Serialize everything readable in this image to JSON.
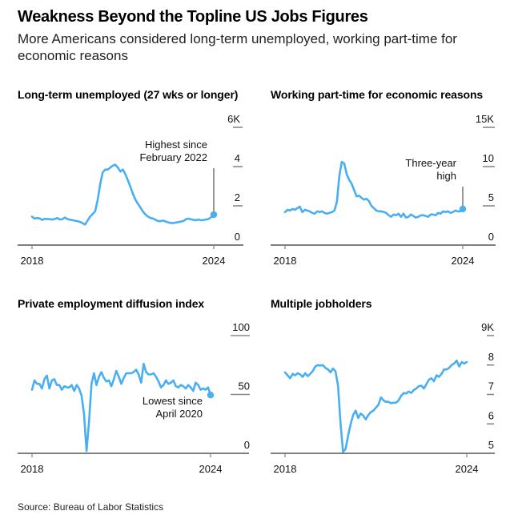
{
  "header": {
    "title": "Weakness Beyond the Topline US Jobs Figures",
    "subtitle": "More Americans considered long-term unemployed, working part-time for economic reasons"
  },
  "source": "Source: Bureau of Labor Statistics",
  "colors": {
    "line": "#4aaff0",
    "axis": "#333333",
    "tick": "#888888",
    "annotation_line": "#333333"
  },
  "chart_data": [
    {
      "type": "line",
      "title": "Long-term unemployed (27 wks or longer)",
      "xlabel": "",
      "ylabel": "",
      "x_ticks": [
        "2018",
        "2024"
      ],
      "y_ticks": [
        "0",
        "2",
        "4",
        "6K"
      ],
      "ylim": [
        0,
        6
      ],
      "xlim": [
        2018.0,
        2024.0
      ],
      "grid": false,
      "annotation": {
        "text": [
          "Highest since",
          "February 2022"
        ],
        "x": 2024.0,
        "y": 1.55
      },
      "series": [
        {
          "name": "Long-term unemployed (thousands)",
          "x_start": 2018.0,
          "step_months": 1,
          "values": [
            1.45,
            1.35,
            1.38,
            1.36,
            1.28,
            1.34,
            1.33,
            1.32,
            1.3,
            1.33,
            1.38,
            1.3,
            1.32,
            1.4,
            1.33,
            1.29,
            1.27,
            1.24,
            1.22,
            1.18,
            1.12,
            1.05,
            1.25,
            1.45,
            1.58,
            1.72,
            2.3,
            3.1,
            3.7,
            3.85,
            3.85,
            3.95,
            4.05,
            4.1,
            3.95,
            3.75,
            3.85,
            3.6,
            3.3,
            2.95,
            2.6,
            2.3,
            2.1,
            1.9,
            1.7,
            1.55,
            1.45,
            1.38,
            1.35,
            1.28,
            1.22,
            1.22,
            1.25,
            1.2,
            1.15,
            1.13,
            1.12,
            1.15,
            1.17,
            1.2,
            1.23,
            1.32,
            1.35,
            1.31,
            1.28,
            1.27,
            1.3,
            1.26,
            1.28,
            1.3,
            1.34,
            1.42,
            1.55
          ]
        }
      ]
    },
    {
      "type": "line",
      "title": "Working part-time for economic reasons",
      "xlabel": "",
      "ylabel": "",
      "x_ticks": [
        "2018",
        "2024"
      ],
      "y_ticks": [
        "0",
        "5",
        "10",
        "15K"
      ],
      "ylim": [
        0,
        15
      ],
      "xlim": [
        2018.0,
        2024.0
      ],
      "grid": false,
      "annotation": {
        "text": [
          "Three-year",
          "high"
        ],
        "x": 2024.0,
        "y": 4.6
      },
      "series": [
        {
          "name": "Part-time for economic reasons (thousands)",
          "x_start": 2018.0,
          "step_months": 1,
          "values": [
            4.2,
            4.5,
            4.4,
            4.6,
            4.5,
            4.7,
            4.9,
            4.2,
            4.5,
            4.4,
            4.3,
            4.1,
            4.0,
            4.3,
            4.2,
            4.3,
            4.1,
            4.0,
            4.1,
            4.2,
            4.4,
            5.5,
            8.8,
            10.6,
            10.4,
            9.0,
            8.3,
            7.8,
            7.0,
            6.2,
            6.3,
            6.0,
            5.8,
            5.9,
            5.6,
            5.0,
            4.7,
            4.4,
            4.3,
            4.3,
            4.2,
            4.1,
            3.8,
            3.6,
            3.9,
            3.8,
            4.0,
            3.6,
            4.0,
            3.5,
            3.6,
            3.9,
            3.7,
            3.5,
            3.6,
            3.8,
            3.8,
            3.7,
            3.6,
            3.9,
            3.9,
            3.8,
            4.1,
            4.0,
            4.3,
            4.2,
            4.3,
            4.1,
            4.2,
            4.4,
            4.3,
            4.3,
            4.6
          ]
        }
      ]
    },
    {
      "type": "line",
      "title": "Private employment diffusion index",
      "xlabel": "",
      "ylabel": "",
      "x_ticks": [
        "2018",
        "2024"
      ],
      "y_ticks": [
        "0",
        "50",
        "100"
      ],
      "ylim": [
        0,
        100
      ],
      "xlim": [
        2018.0,
        2024.0
      ],
      "grid": false,
      "annotation": {
        "text": [
          "Lowest since",
          "April 2020"
        ],
        "x": 2024.0,
        "y": 49.5
      },
      "series": [
        {
          "name": "Diffusion index",
          "x_start": 2018.0,
          "step_months": 1,
          "values": [
            54,
            62,
            59,
            59,
            55,
            63,
            66,
            55,
            62,
            63,
            58,
            58,
            54,
            57,
            56,
            56,
            58,
            53,
            58,
            55,
            49,
            33,
            2,
            27,
            59,
            68,
            58,
            65,
            69,
            64,
            61,
            62,
            57,
            63,
            70,
            65,
            59,
            64,
            68,
            68,
            68,
            69,
            71,
            67,
            60,
            76,
            69,
            67,
            67,
            68,
            65,
            61,
            56,
            58,
            62,
            59,
            60,
            62,
            57,
            56,
            58,
            57,
            55,
            58,
            56,
            53,
            60,
            58,
            54,
            55,
            54,
            56,
            49.5
          ]
        }
      ]
    },
    {
      "type": "line",
      "title": "Multiple jobholders",
      "xlabel": "",
      "ylabel": "",
      "x_ticks": [
        "2018",
        "2024"
      ],
      "y_ticks": [
        "5",
        "6",
        "7",
        "8",
        "9K"
      ],
      "ylim": [
        5,
        9
      ],
      "xlim": [
        2018.0,
        2024.0
      ],
      "grid": false,
      "series": [
        {
          "name": "Multiple jobholders (thousands)",
          "x_start": 2018.0,
          "step_months": 1,
          "values": [
            7.75,
            7.65,
            7.55,
            7.7,
            7.65,
            7.72,
            7.68,
            7.6,
            7.72,
            7.62,
            7.7,
            7.8,
            7.95,
            8.0,
            7.98,
            8.0,
            7.9,
            7.85,
            7.75,
            7.88,
            7.78,
            7.3,
            6.0,
            5.05,
            5.15,
            5.6,
            6.0,
            6.3,
            6.45,
            6.2,
            6.35,
            6.28,
            6.15,
            6.3,
            6.4,
            6.45,
            6.55,
            6.65,
            6.9,
            6.8,
            6.75,
            6.75,
            6.7,
            6.72,
            6.72,
            6.8,
            6.95,
            7.05,
            7.03,
            7.1,
            7.05,
            7.15,
            7.2,
            7.28,
            7.3,
            7.2,
            7.35,
            7.5,
            7.55,
            7.45,
            7.65,
            7.6,
            7.7,
            7.85,
            7.85,
            7.9,
            8.0,
            8.05,
            8.15,
            7.95,
            8.1,
            8.05,
            8.1
          ]
        }
      ]
    }
  ]
}
